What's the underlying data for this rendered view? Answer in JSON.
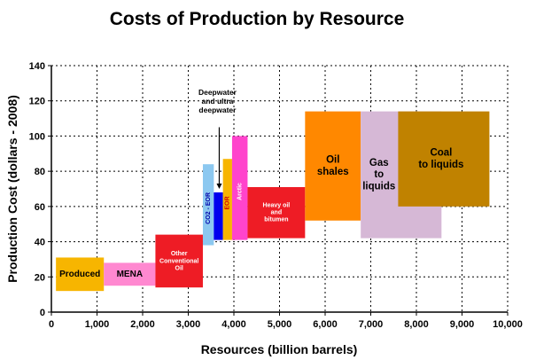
{
  "chart_data": {
    "type": "bar",
    "title": "Costs of Production by Resource",
    "xlabel": "Resources (billion barrels)",
    "ylabel": "Production Cost (dollars - 2008)",
    "xlim": [
      0,
      10000
    ],
    "ylim": [
      0,
      140
    ],
    "xticks": [
      "0",
      "1,000",
      "2,000",
      "3,000",
      "4,000",
      "5,000",
      "6,000",
      "7,000",
      "8,000",
      "9,000",
      "10,000"
    ],
    "yticks": [
      "0",
      "20",
      "40",
      "60",
      "80",
      "100",
      "120",
      "140"
    ],
    "grid": true,
    "resources": [
      {
        "name": "Produced",
        "label_lines": [
          "Produced"
        ],
        "x0": 100,
        "x1": 1150,
        "y0": 12,
        "y1": 31,
        "color": "#f7b500"
      },
      {
        "name": "MENA",
        "label_lines": [
          "MENA"
        ],
        "x0": 1150,
        "x1": 2280,
        "y0": 15,
        "y1": 28,
        "color": "#ff88d0"
      },
      {
        "name": "Other Conventional Oil",
        "label_lines": [
          "Other",
          "Conventional",
          "Oil"
        ],
        "x0": 2280,
        "x1": 3320,
        "y0": 14,
        "y1": 44,
        "color": "#ee1c25"
      },
      {
        "name": "CO2 - EOR",
        "label_lines": [
          "CO2 - EOR"
        ],
        "x0": 3320,
        "x1": 3560,
        "y0": 38,
        "y1": 84,
        "color": "#8cc8f0",
        "vertical": true
      },
      {
        "name": "Deepwater and ultra deepwater",
        "label_lines": [],
        "x0": 3560,
        "x1": 3760,
        "y0": 41,
        "y1": 68,
        "color": "#0000ee"
      },
      {
        "name": "EOR",
        "label_lines": [
          "EOR"
        ],
        "x0": 3760,
        "x1": 3960,
        "y0": 41,
        "y1": 87,
        "color": "#f7b500",
        "vertical": true
      },
      {
        "name": "Arctic",
        "label_lines": [
          "Arctic"
        ],
        "x0": 3960,
        "x1": 4300,
        "y0": 41,
        "y1": 100,
        "color": "#ff44cc",
        "vertical": true
      },
      {
        "name": "Heavy oil and bitumen",
        "label_lines": [
          "Heavy oil",
          "and",
          "bitumen"
        ],
        "x0": 4300,
        "x1": 5560,
        "y0": 42,
        "y1": 71,
        "color": "#ee1c25"
      },
      {
        "name": "Oil shales",
        "label_lines": [
          "Oil",
          "shales"
        ],
        "x0": 5560,
        "x1": 6780,
        "y0": 52,
        "y1": 114,
        "color": "#ff8800"
      },
      {
        "name": "Gas to liquids",
        "label_lines": [
          "Gas",
          "to",
          "liquids"
        ],
        "x0": 6780,
        "x1": 8550,
        "y0": 42,
        "y1": 114,
        "color": "#d6b8d6"
      },
      {
        "name": "Coal to liquids",
        "label_lines": [
          "Coal",
          "to liquids"
        ],
        "x0": 7600,
        "x1": 9600,
        "y0": 60,
        "y1": 114,
        "color": "#c08200"
      }
    ],
    "annotation": {
      "label_lines": [
        "Deepwater",
        "and ultra",
        "deepwater"
      ],
      "arrow_x": 3640,
      "arrow_y_from": 105,
      "arrow_y_to": 70
    }
  }
}
